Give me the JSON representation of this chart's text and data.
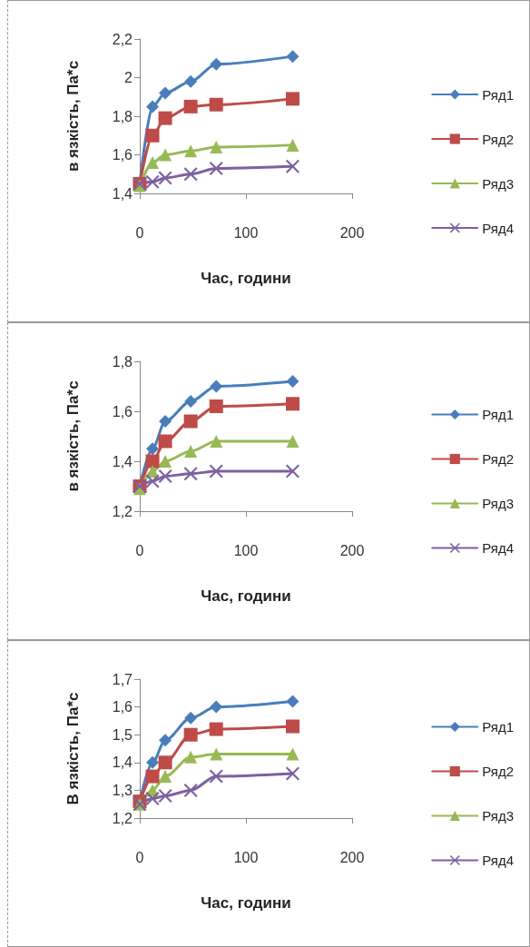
{
  "chart_data": [
    {
      "type": "line",
      "xlabel": "Час, години",
      "ylabel": "в язкість, Па*с",
      "x": [
        0,
        12,
        24,
        48,
        72,
        144
      ],
      "xlim": [
        0,
        200
      ],
      "xticks": [
        0,
        100,
        200
      ],
      "ylim": [
        1.4,
        2.2
      ],
      "yticks": [
        {
          "value": 1.4,
          "label": "1,4"
        },
        {
          "value": 1.6,
          "label": "1,6"
        },
        {
          "value": 1.8,
          "label": "1,8"
        },
        {
          "value": 2,
          "label": "2"
        },
        {
          "value": 2.2,
          "label": "2,2"
        }
      ],
      "grid": false,
      "legend": "right",
      "line_style": "solid",
      "series": [
        {
          "name": "Ряд1",
          "color": "#4a7ebb",
          "marker": "diamond",
          "values": [
            1.45,
            1.85,
            1.92,
            1.98,
            2.07,
            2.11
          ]
        },
        {
          "name": "Ряд2",
          "color": "#be4b48",
          "marker": "square",
          "values": [
            1.45,
            1.7,
            1.79,
            1.85,
            1.86,
            1.89
          ]
        },
        {
          "name": "Ряд3",
          "color": "#98b954",
          "marker": "triangle",
          "values": [
            1.44,
            1.56,
            1.6,
            1.62,
            1.64,
            1.65
          ]
        },
        {
          "name": "Ряд4",
          "color": "#7d60a0",
          "marker": "cross",
          "values": [
            1.45,
            1.46,
            1.48,
            1.5,
            1.53,
            1.54
          ]
        }
      ]
    },
    {
      "type": "line",
      "xlabel": "Час, години",
      "ylabel": "в язкість, Па*с",
      "x": [
        0,
        12,
        24,
        48,
        72,
        144
      ],
      "xlim": [
        0,
        200
      ],
      "xticks": [
        0,
        100,
        200
      ],
      "ylim": [
        1.2,
        1.8
      ],
      "yticks": [
        {
          "value": 1.2,
          "label": "1,2"
        },
        {
          "value": 1.4,
          "label": "1,4"
        },
        {
          "value": 1.6,
          "label": "1,6"
        },
        {
          "value": 1.8,
          "label": "1,8"
        }
      ],
      "grid": false,
      "legend": "right",
      "line_style": "solid",
      "series": [
        {
          "name": "Ряд1",
          "color": "#4a7ebb",
          "marker": "diamond",
          "values": [
            1.3,
            1.45,
            1.56,
            1.64,
            1.7,
            1.72
          ]
        },
        {
          "name": "Ряд2",
          "color": "#be4b48",
          "marker": "square",
          "values": [
            1.3,
            1.4,
            1.48,
            1.56,
            1.62,
            1.63
          ]
        },
        {
          "name": "Ряд3",
          "color": "#98b954",
          "marker": "triangle",
          "values": [
            1.29,
            1.36,
            1.4,
            1.44,
            1.48,
            1.48
          ]
        },
        {
          "name": "Ряд4",
          "color": "#7d60a0",
          "marker": "cross",
          "values": [
            1.3,
            1.32,
            1.34,
            1.35,
            1.36,
            1.36
          ]
        }
      ]
    },
    {
      "type": "line",
      "xlabel": "Час, години",
      "ylabel": "В язкість, Па*с",
      "x": [
        0,
        12,
        24,
        48,
        72,
        144
      ],
      "xlim": [
        0,
        200
      ],
      "xticks": [
        0,
        100,
        200
      ],
      "ylim": [
        1.2,
        1.7
      ],
      "yticks": [
        {
          "value": 1.2,
          "label": "1,2"
        },
        {
          "value": 1.3,
          "label": "1,3"
        },
        {
          "value": 1.4,
          "label": "1,4"
        },
        {
          "value": 1.5,
          "label": "1,5"
        },
        {
          "value": 1.6,
          "label": "1,6"
        },
        {
          "value": 1.7,
          "label": "1,7"
        }
      ],
      "grid": false,
      "legend": "right",
      "line_style": "solid",
      "series": [
        {
          "name": "Ряд1",
          "color": "#4a7ebb",
          "marker": "diamond",
          "values": [
            1.26,
            1.4,
            1.48,
            1.56,
            1.6,
            1.62
          ]
        },
        {
          "name": "Ряд2",
          "color": "#be4b48",
          "marker": "square",
          "values": [
            1.26,
            1.35,
            1.4,
            1.5,
            1.52,
            1.53
          ]
        },
        {
          "name": "Ряд3",
          "color": "#98b954",
          "marker": "triangle",
          "values": [
            1.25,
            1.3,
            1.35,
            1.42,
            1.43,
            1.43
          ]
        },
        {
          "name": "Ряд4",
          "color": "#7d60a0",
          "marker": "cross",
          "values": [
            1.25,
            1.27,
            1.28,
            1.3,
            1.35,
            1.36
          ]
        }
      ]
    }
  ]
}
